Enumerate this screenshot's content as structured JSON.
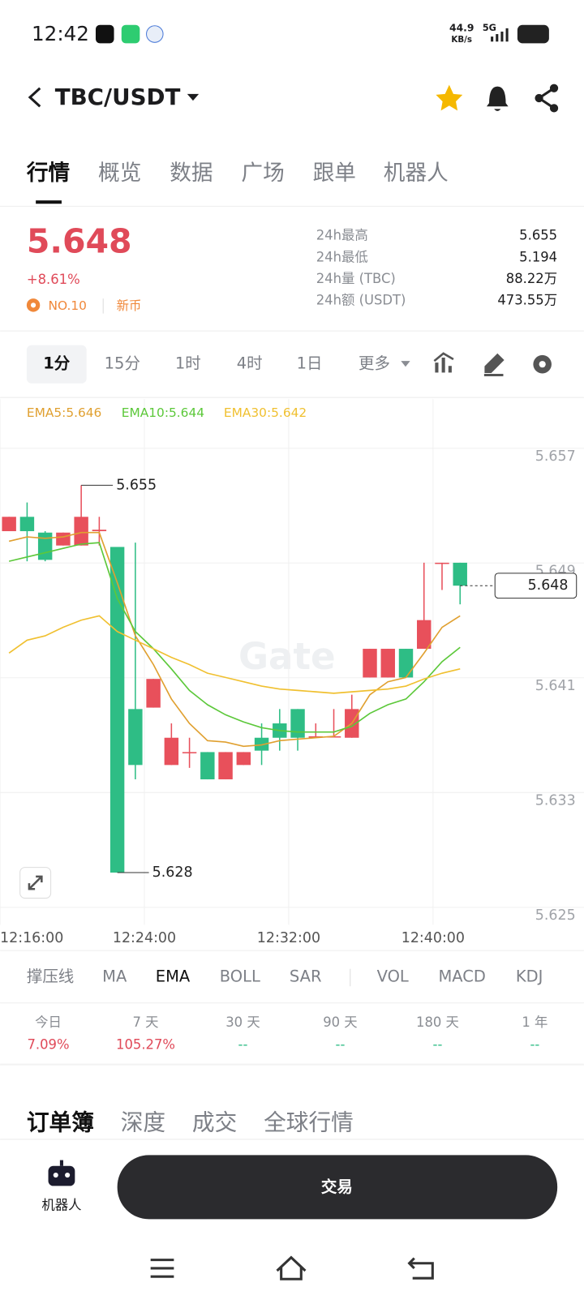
{
  "status_bar": {
    "time": "12:42",
    "speed": "44.9",
    "speed_unit": "KB/s",
    "network": "5G"
  },
  "header": {
    "pair": "TBC/USDT"
  },
  "tabs": [
    "行情",
    "概览",
    "数据",
    "广场",
    "跟单",
    "机器人"
  ],
  "ticker": {
    "price": "5.648",
    "change": "+8.61%",
    "rank": "NO.10",
    "tag": "新币",
    "stats": [
      {
        "label": "24h最高",
        "value": "5.655"
      },
      {
        "label": "24h最低",
        "value": "5.194"
      },
      {
        "label": "24h量 (TBC)",
        "value": "88.22万"
      },
      {
        "label": "24h额 (USDT)",
        "value": "473.55万"
      }
    ]
  },
  "intervals": [
    "1分",
    "15分",
    "1时",
    "4时",
    "1日",
    "更多"
  ],
  "chart_data": {
    "type": "candlestick",
    "watermark": "Gate",
    "grid": true,
    "x": [
      "12:16:00",
      "12:17:00",
      "12:18:00",
      "12:19:00",
      "12:20:00",
      "12:21:00",
      "12:22:00",
      "12:23:00",
      "12:24:00",
      "12:25:00",
      "12:26:00",
      "12:27:00",
      "12:28:00",
      "12:29:00",
      "12:30:00",
      "12:31:00",
      "12:32:00",
      "12:33:00",
      "12:34:00",
      "12:35:00",
      "12:36:00",
      "12:37:00",
      "12:38:00",
      "12:39:00",
      "12:40:00",
      "12:41:00"
    ],
    "candles": {
      "open": [
        5.6518,
        5.6528,
        5.6517,
        5.6508,
        5.6508,
        5.6518,
        5.6507,
        5.6394,
        5.6395,
        5.6355,
        5.6364,
        5.6364,
        5.6345,
        5.6355,
        5.6374,
        5.6384,
        5.6394,
        5.6375,
        5.6375,
        5.6374,
        5.6416,
        5.6416,
        5.6436,
        5.6436,
        5.6496,
        5.6496
      ],
      "high": [
        5.6528,
        5.6538,
        5.6518,
        5.6517,
        5.655,
        5.6528,
        5.6507,
        5.651,
        5.6415,
        5.6384,
        5.6374,
        5.6364,
        5.6364,
        5.6364,
        5.6384,
        5.6394,
        5.6394,
        5.6384,
        5.6394,
        5.6404,
        5.6436,
        5.6436,
        5.6436,
        5.6496,
        5.6496,
        5.6496
      ],
      "low": [
        5.6518,
        5.6497,
        5.6497,
        5.6508,
        5.6508,
        5.6508,
        5.628,
        5.6345,
        5.6395,
        5.6355,
        5.6353,
        5.6345,
        5.6345,
        5.6355,
        5.6355,
        5.6365,
        5.6365,
        5.6375,
        5.6375,
        5.6374,
        5.6416,
        5.6416,
        5.6416,
        5.6436,
        5.6477,
        5.6467
      ],
      "close": [
        5.6528,
        5.6518,
        5.6498,
        5.6517,
        5.6528,
        5.6519,
        5.628,
        5.6355,
        5.6415,
        5.6374,
        5.6364,
        5.6345,
        5.6364,
        5.6364,
        5.6365,
        5.6374,
        5.6374,
        5.6375,
        5.6375,
        5.6394,
        5.6436,
        5.6436,
        5.6416,
        5.6456,
        5.6496,
        5.648
      ]
    },
    "up_color": "#e8505b",
    "down_color": "#2ebd85",
    "series": [
      {
        "name": "EMA5:5.646",
        "color": "#e0a030",
        "values": [
          5.6511,
          5.6514,
          5.6513,
          5.6514,
          5.6517,
          5.6517,
          5.6482,
          5.6445,
          5.6425,
          5.6401,
          5.6384,
          5.6372,
          5.6371,
          5.6368,
          5.6369,
          5.6372,
          5.6373,
          5.6374,
          5.6375,
          5.6384,
          5.6404,
          5.6413,
          5.6416,
          5.6433,
          5.6451,
          5.6459
        ]
      },
      {
        "name": "EMA10:5.644",
        "color": "#5cc83a",
        "values": [
          5.6497,
          5.65,
          5.6503,
          5.6506,
          5.6509,
          5.651,
          5.6471,
          5.6448,
          5.6436,
          5.6422,
          5.6407,
          5.6397,
          5.639,
          5.6385,
          5.6381,
          5.6379,
          5.6378,
          5.6378,
          5.6378,
          5.6382,
          5.6391,
          5.6397,
          5.6401,
          5.6413,
          5.6427,
          5.6437
        ]
      },
      {
        "name": "EMA30:5.642",
        "color": "#f0c030",
        "values": [
          5.6433,
          5.6442,
          5.6445,
          5.6451,
          5.6456,
          5.6459,
          5.6448,
          5.6442,
          5.6436,
          5.643,
          5.6425,
          5.6419,
          5.6416,
          5.6413,
          5.641,
          5.6408,
          5.6407,
          5.6406,
          5.6405,
          5.6406,
          5.6407,
          5.6408,
          5.641,
          5.6415,
          5.6419,
          5.6422
        ]
      }
    ],
    "ylim": [
      5.625,
      5.657
    ],
    "yticks": [
      5.657,
      5.649,
      5.641,
      5.633,
      5.625
    ],
    "xlim": [
      "12:16:00",
      "12:48:22"
    ],
    "xticks": [
      "12:16:00",
      "12:24:00",
      "12:32:00",
      "12:40:00"
    ],
    "max_marker": {
      "x": "12:20:00",
      "value": 5.655
    },
    "min_marker": {
      "x": "12:22:00",
      "value": 5.628
    },
    "last_price": 5.648
  },
  "indicators": [
    "撑压线",
    "MA",
    "EMA",
    "BOLL",
    "SAR",
    "VOL",
    "MACD",
    "KDJ"
  ],
  "returns": [
    {
      "period": "今日",
      "value": "7.09%"
    },
    {
      "period": "7 天",
      "value": "105.27%"
    },
    {
      "period": "30 天",
      "value": "--"
    },
    {
      "period": "90 天",
      "value": "--"
    },
    {
      "period": "180 天",
      "value": "--"
    },
    {
      "period": "1 年",
      "value": "--"
    }
  ],
  "book_tabs": [
    "订单簿",
    "深度",
    "成交",
    "全球行情"
  ],
  "bottom_bar": {
    "robot": "机器人",
    "trade": "交易"
  }
}
